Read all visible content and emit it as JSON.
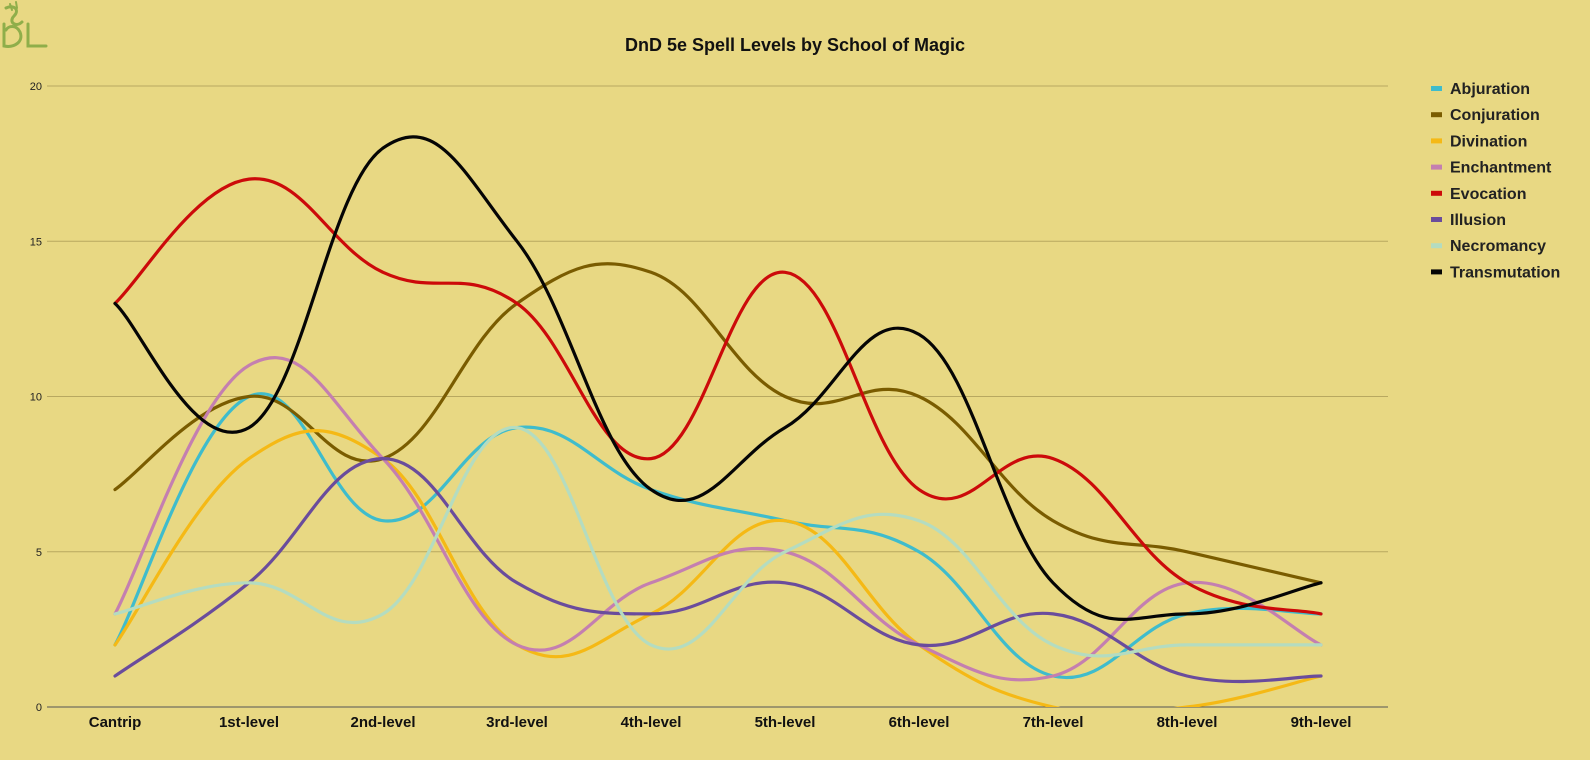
{
  "chart_data": {
    "type": "line",
    "title": "DnD 5e Spell Levels by School of Magic",
    "xlabel": "",
    "ylabel": "",
    "ylim": [
      0,
      20
    ],
    "yticks": [
      0,
      5,
      10,
      15,
      20
    ],
    "grid": true,
    "legend_position": "right",
    "categories": [
      "Cantrip",
      "1st-level",
      "2nd-level",
      "3rd-level",
      "4th-level",
      "5th-level",
      "6th-level",
      "7th-level",
      "8th-level",
      "9th-level"
    ],
    "series": [
      {
        "name": "Abjuration",
        "color": "#3fbccc",
        "values": [
          2,
          10,
          6,
          9,
          7,
          6,
          5,
          1,
          3,
          3
        ]
      },
      {
        "name": "Conjuration",
        "color": "#7a5c00",
        "values": [
          7,
          10,
          8,
          13,
          14,
          10,
          10,
          6,
          5,
          4
        ]
      },
      {
        "name": "Divination",
        "color": "#f5b915",
        "values": [
          2,
          8,
          8,
          2,
          3,
          6,
          2,
          0,
          0,
          1
        ]
      },
      {
        "name": "Enchantment",
        "color": "#c47fb0",
        "values": [
          3,
          11,
          8,
          2,
          4,
          5,
          2,
          1,
          4,
          2
        ]
      },
      {
        "name": "Evocation",
        "color": "#cc0a0a",
        "values": [
          13,
          17,
          14,
          13,
          8,
          14,
          7,
          8,
          4,
          3
        ]
      },
      {
        "name": "Illusion",
        "color": "#6a4c9c",
        "values": [
          1,
          4,
          8,
          4,
          3,
          4,
          2,
          3,
          1,
          1
        ]
      },
      {
        "name": "Necromancy",
        "color": "#b4dcc0",
        "values": [
          3,
          4,
          3,
          9,
          2,
          5,
          6,
          2,
          2,
          2
        ]
      },
      {
        "name": "Transmutation",
        "color": "#050505",
        "values": [
          13,
          9,
          18,
          15,
          7,
          9,
          12,
          4,
          3,
          4
        ]
      }
    ]
  },
  "colors": {
    "background": "#e8d883",
    "gridline": "#b8a860",
    "axis": "#555555"
  },
  "logo": {
    "icon": "dungeon-logo-icon",
    "text": "DL"
  }
}
